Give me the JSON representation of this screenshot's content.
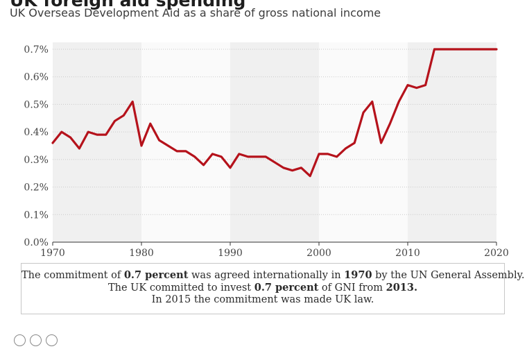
{
  "header": {
    "title": "UK foreign aid spending",
    "subtitle": "UK Overseas Development Aid as a share of gross national income"
  },
  "chart_data": {
    "type": "line",
    "title": "UK foreign aid spending",
    "subtitle": "UK Overseas Development Aid as a share of gross national income",
    "xlabel": "",
    "ylabel": "",
    "xlim": [
      1970,
      2020
    ],
    "ylim": [
      0,
      0.7
    ],
    "x_ticks": [
      1970,
      1980,
      1990,
      2000,
      2010,
      2020
    ],
    "y_ticks": [
      0,
      0.1,
      0.2,
      0.3,
      0.4,
      0.5,
      0.6,
      0.7
    ],
    "y_tick_labels": [
      "0.0%",
      "0.1%",
      "0.2%",
      "0.3%",
      "0.4%",
      "0.5%",
      "0.6%",
      "0.7%"
    ],
    "grid": "horizontal dotted, alternating shaded decade bands",
    "line_color": "#b5121b",
    "series": [
      {
        "x": [
          1970,
          1971,
          1972,
          1973,
          1974,
          1975,
          1976,
          1977,
          1978,
          1979,
          1980,
          1981,
          1982,
          1983,
          1984,
          1985,
          1986,
          1987,
          1988,
          1989,
          1990,
          1991,
          1992,
          1993,
          1994,
          1995,
          1996,
          1997,
          1998,
          1999,
          2000,
          2001,
          2002,
          2003,
          2004,
          2005,
          2006,
          2007,
          2008,
          2009,
          2010,
          2011,
          2012,
          2013,
          2014,
          2015,
          2016,
          2017,
          2018,
          2019,
          2020
        ],
        "values": [
          0.36,
          0.4,
          0.38,
          0.34,
          0.4,
          0.39,
          0.39,
          0.44,
          0.46,
          0.51,
          0.35,
          0.43,
          0.37,
          0.35,
          0.33,
          0.33,
          0.31,
          0.28,
          0.32,
          0.31,
          0.27,
          0.32,
          0.31,
          0.31,
          0.31,
          0.29,
          0.27,
          0.26,
          0.27,
          0.24,
          0.32,
          0.32,
          0.31,
          0.34,
          0.36,
          0.47,
          0.51,
          0.36,
          0.43,
          0.51,
          0.57,
          0.56,
          0.57,
          0.7,
          0.7,
          0.7,
          0.7,
          0.7,
          0.7,
          0.7,
          0.7
        ]
      }
    ]
  },
  "note": {
    "line1_a": "The commitment of ",
    "line1_b": "0.7 percent",
    "line1_c": " was agreed internationally in ",
    "line1_d": "1970",
    "line1_e": "  by the UN General Assembly.",
    "line2_a": "The UK committed to invest ",
    "line2_b": "0.7 percent",
    "line2_c": " of GNI from ",
    "line2_d": "2013.",
    "line3": "In 2015 the commitment was made UK law."
  }
}
